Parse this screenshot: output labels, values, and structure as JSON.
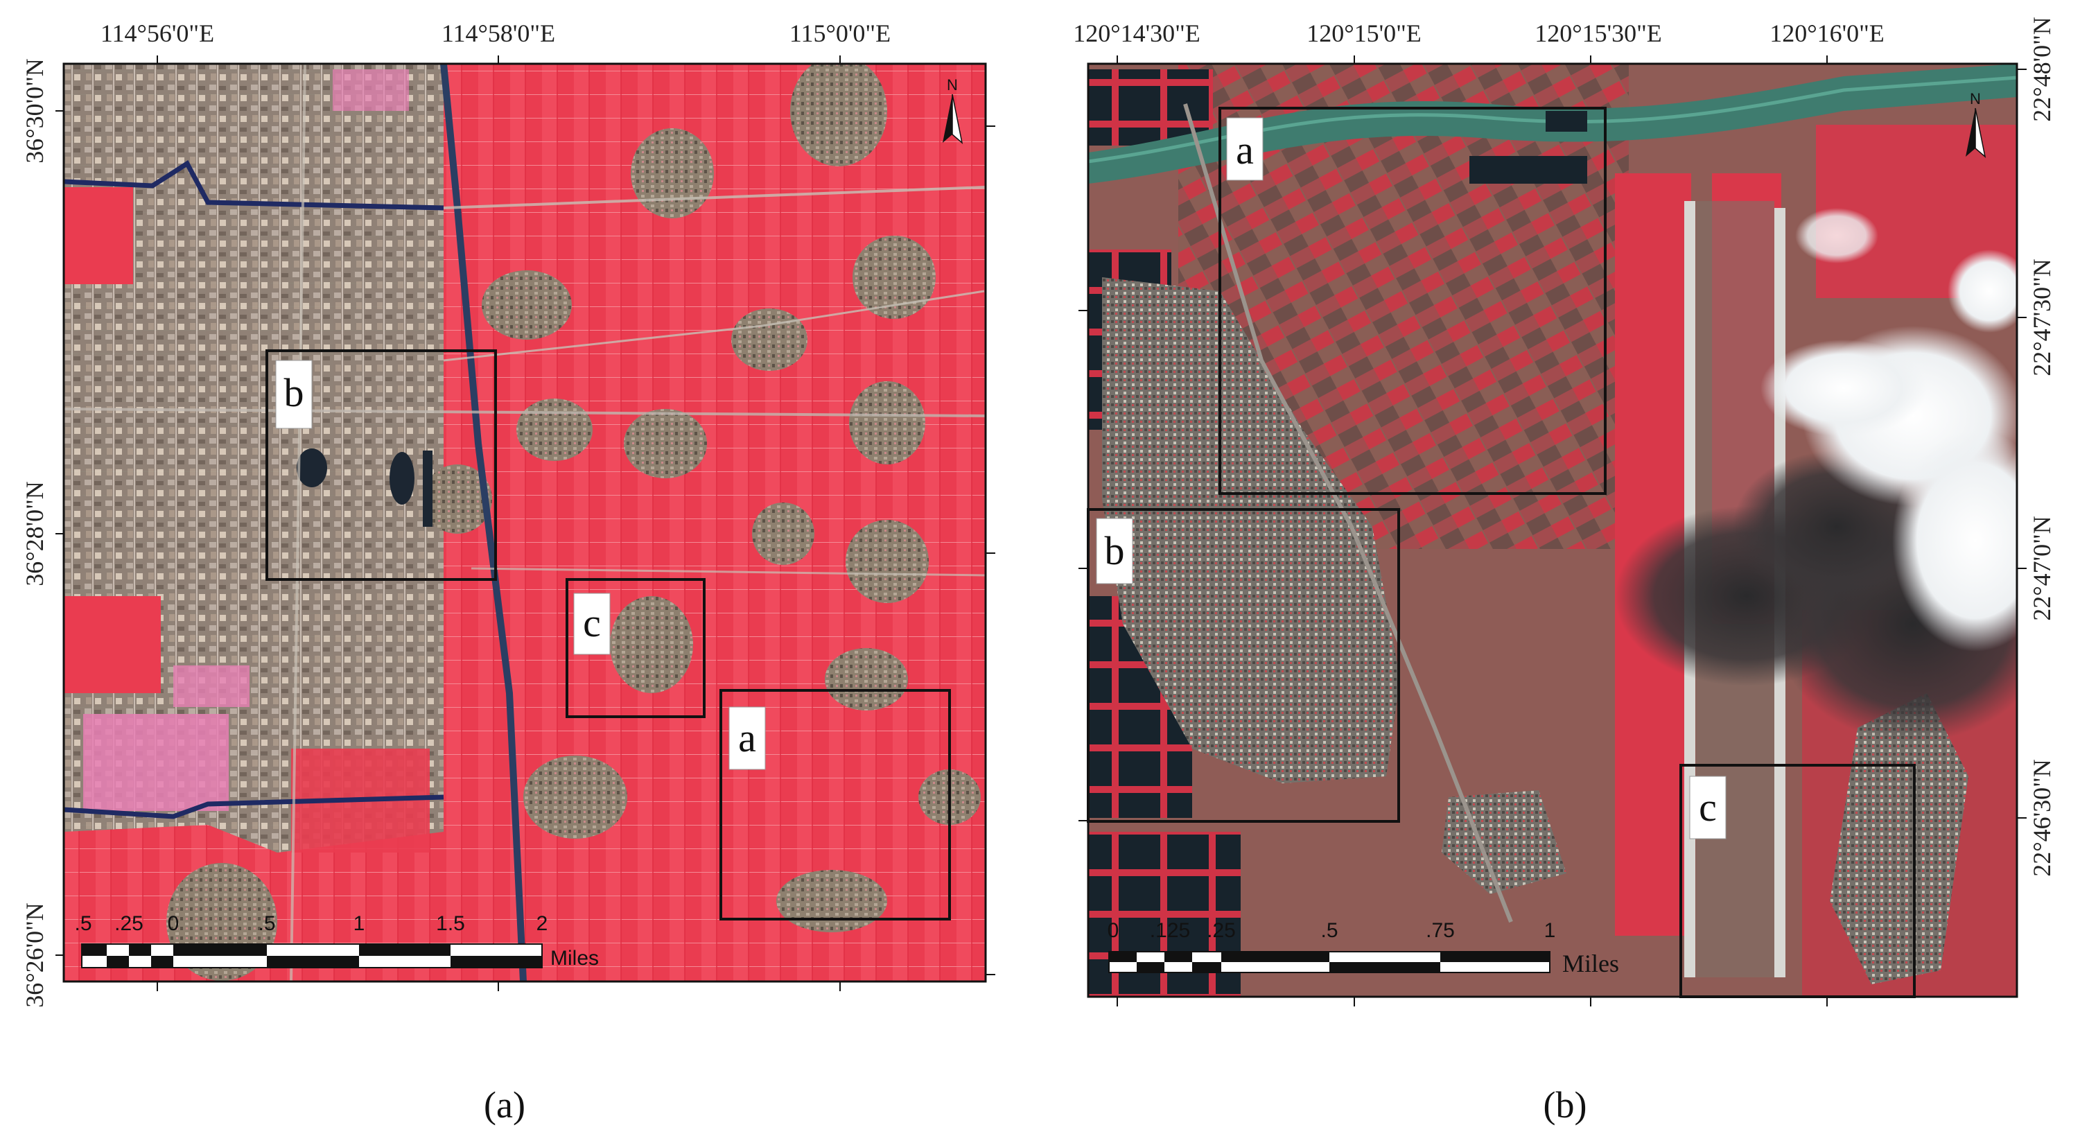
{
  "panel_a": {
    "caption": "(a)",
    "top_ticks": [
      "114°56'0\"E",
      "114°58'0\"E",
      "115°0'0\"E"
    ],
    "left_ticks": [
      "36°30'0\"N",
      "36°28'0\"N",
      "36°26'0\"N"
    ],
    "boxes": [
      "a",
      "b",
      "c"
    ],
    "north_label": "N",
    "scale_labels": [
      ".5",
      ".25",
      "0",
      ".5",
      "1",
      "1.5",
      "2"
    ],
    "scale_unit": "Miles"
  },
  "panel_b": {
    "caption": "(b)",
    "top_ticks": [
      "120°14'30\"E",
      "120°15'0\"E",
      "120°15'30\"E",
      "120°16'0\"E"
    ],
    "right_ticks": [
      "22°48'0\"N",
      "22°47'30\"N",
      "22°47'0\"N",
      "22°46'30\"N"
    ],
    "boxes": [
      "a",
      "b",
      "c"
    ],
    "north_label": "N",
    "scale_labels": [
      "0",
      ".125",
      ".25",
      ".5",
      ".75",
      "1"
    ],
    "scale_unit": "Miles"
  },
  "colors": {
    "vegetation_red": "#e8364a",
    "vegetation_bright": "#f0475c",
    "settlement": "#8d7d6c",
    "water_dark": "#1f2c38",
    "canal_green": "#3f7c6f",
    "cloud": "#f4f6f8",
    "frame": "#111111"
  }
}
